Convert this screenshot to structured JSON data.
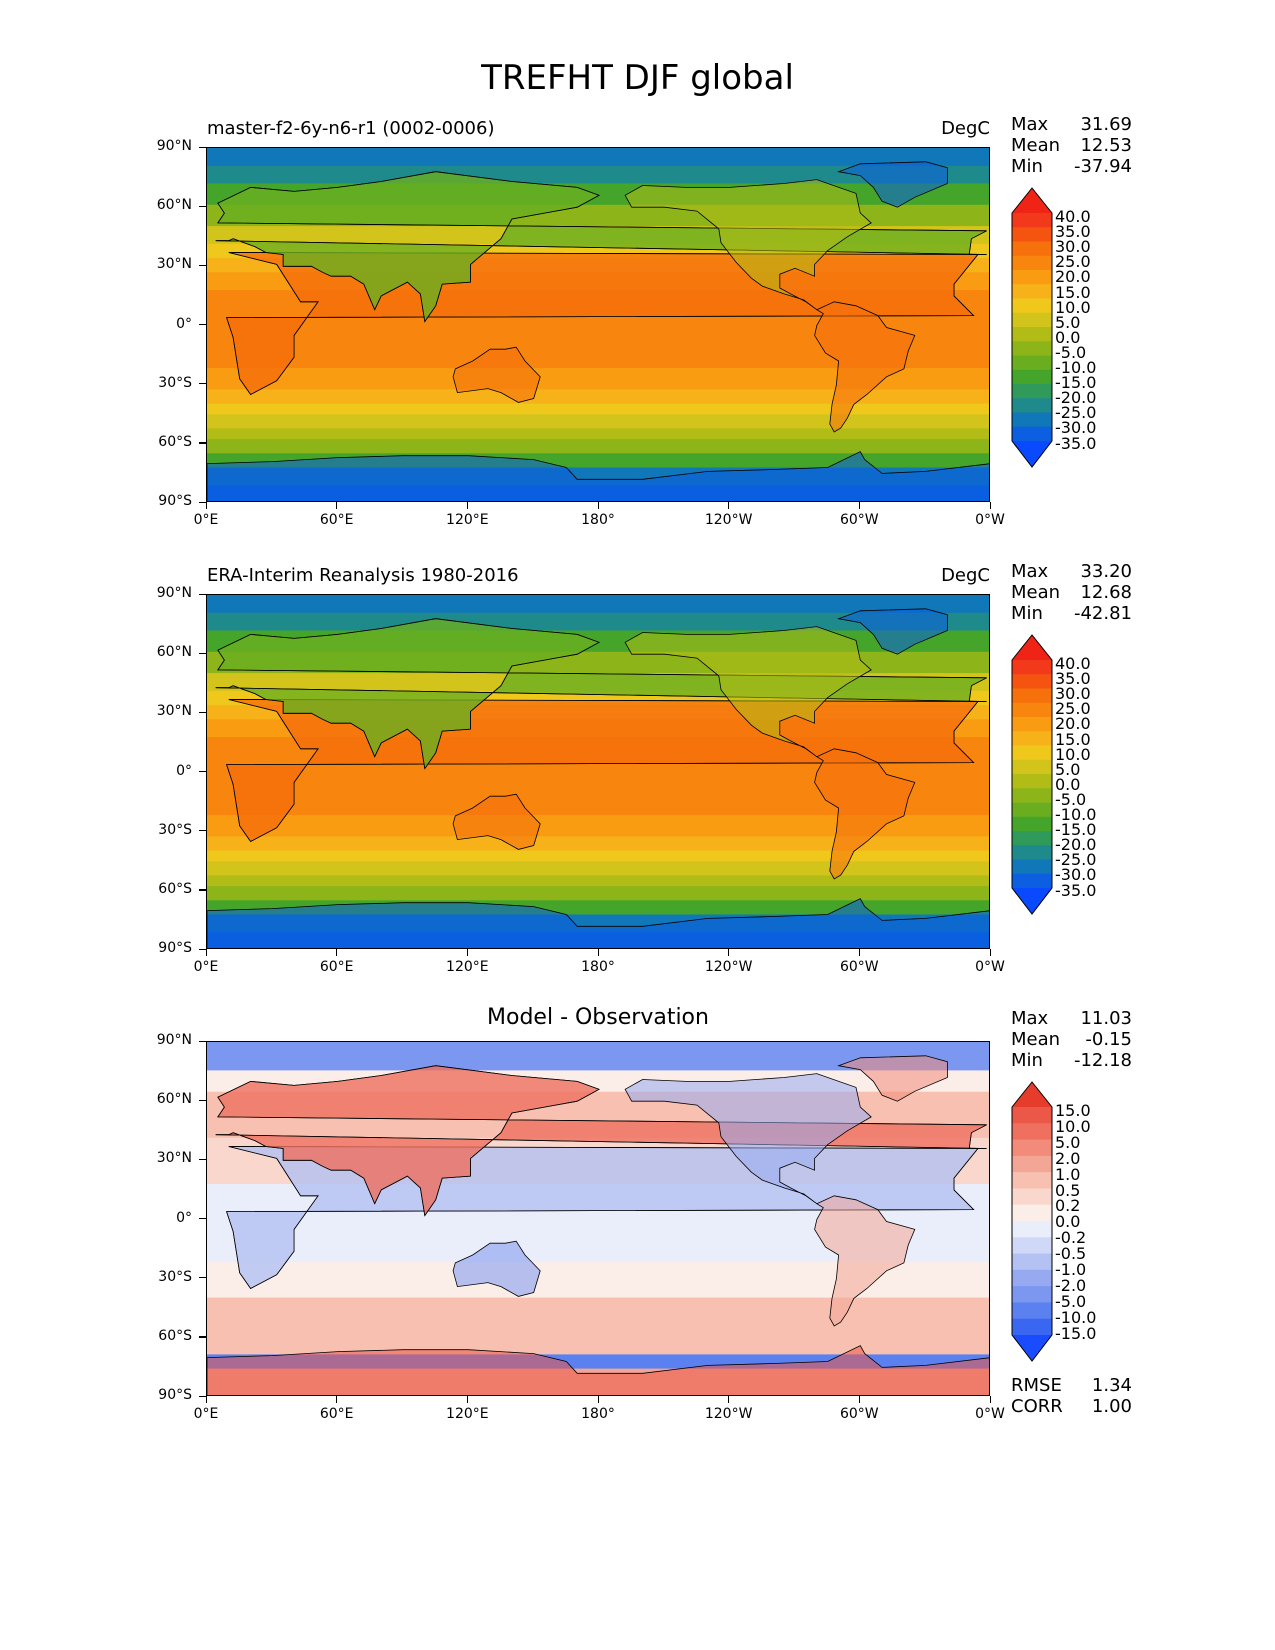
{
  "suptitle": "TREFHT DJF global",
  "colors": {
    "full_field": [
      "#0a4aff",
      "#0b5fe0",
      "#1077b8",
      "#1e8a8c",
      "#2f9a5a",
      "#45a52a",
      "#6aae20",
      "#8db51a",
      "#b1bc16",
      "#d2c41a",
      "#f0c81c",
      "#f7b21a",
      "#f99c12",
      "#f8860e",
      "#f6700c",
      "#f45410",
      "#f2391c",
      "#ef2417"
    ],
    "difference": [
      "#1a4cff",
      "#3a67f2",
      "#5b81f0",
      "#7b97f0",
      "#97aaf1",
      "#b3c1f3",
      "#cfd8f6",
      "#eaeefb",
      "#fbeee9",
      "#f9d7cc",
      "#f7c0b1",
      "#f4a696",
      "#f28b7a",
      "#ef705f",
      "#eb5847",
      "#e63c2b"
    ],
    "coastline": "#000000"
  },
  "panels": [
    {
      "title": "master-f2-6y-n6-r1 (0002-0006)",
      "units": "DegC",
      "stats": [
        [
          "Max",
          "31.69"
        ],
        [
          "Mean",
          "12.53"
        ],
        [
          "Min",
          "-37.94"
        ]
      ],
      "colorbar": [
        "40.0",
        "35.0",
        "30.0",
        "25.0",
        "20.0",
        "15.0",
        "10.0",
        "5.0",
        "0.0",
        "-5.0",
        "-10.0",
        "-15.0",
        "-20.0",
        "-25.0",
        "-30.0",
        "-35.0"
      ]
    },
    {
      "title": "ERA-Interim Reanalysis 1980-2016",
      "units": "DegC",
      "stats": [
        [
          "Max",
          "33.20"
        ],
        [
          "Mean",
          "12.68"
        ],
        [
          "Min",
          "-42.81"
        ]
      ],
      "colorbar": [
        "40.0",
        "35.0",
        "30.0",
        "25.0",
        "20.0",
        "15.0",
        "10.0",
        "5.0",
        "0.0",
        "-5.0",
        "-10.0",
        "-15.0",
        "-20.0",
        "-25.0",
        "-30.0",
        "-35.0"
      ]
    },
    {
      "title": "Model - Observation",
      "units": "",
      "stats": [
        [
          "Max",
          "11.03"
        ],
        [
          "Mean",
          "-0.15"
        ],
        [
          "Min",
          "-12.18"
        ]
      ],
      "colorbar": [
        "15.0",
        "10.0",
        "5.0",
        "2.0",
        "1.0",
        "0.5",
        "0.2",
        "0.0",
        "-0.2",
        "-0.5",
        "-1.0",
        "-2.0",
        "-5.0",
        "-10.0",
        "-15.0"
      ],
      "metrics": [
        [
          "RMSE",
          "1.34"
        ],
        [
          "CORR",
          "1.00"
        ]
      ]
    }
  ],
  "lat_ticks": [
    "90°N",
    "60°N",
    "30°N",
    "0°",
    "30°S",
    "60°S",
    "90°S"
  ],
  "lon_ticks": [
    "0°E",
    "60°E",
    "120°E",
    "180°",
    "120°W",
    "60°W",
    "0°W"
  ]
}
